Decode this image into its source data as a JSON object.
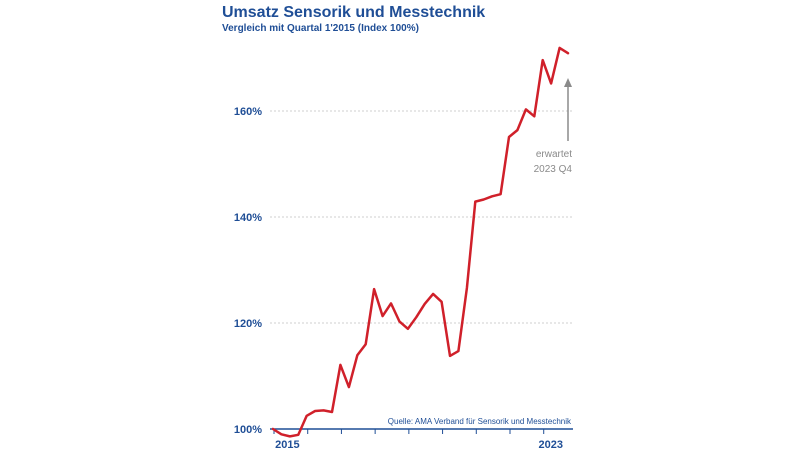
{
  "chart_data": {
    "type": "line",
    "title": "Umsatz Sensorik und Messtechnik",
    "subtitle": "Vergleich mit Quartal 1'2015 (Index 100%)",
    "source": "Quelle: AMA Verband für Sensorik und Messtechnik",
    "ylim": [
      100,
      173
    ],
    "yticks": [
      100,
      120,
      140,
      160
    ],
    "ytick_labels": [
      "100%",
      "120%",
      "140%",
      "160%"
    ],
    "xtick_labels": [
      "2015",
      "2023"
    ],
    "x": [
      "2015 Q1",
      "2015 Q2",
      "2015 Q3",
      "2015 Q4",
      "2016 Q1",
      "2016 Q2",
      "2016 Q3",
      "2016 Q4",
      "2017 Q1",
      "2017 Q2",
      "2017 Q3",
      "2017 Q4",
      "2018 Q1",
      "2018 Q2",
      "2018 Q3",
      "2018 Q4",
      "2019 Q1",
      "2019 Q2",
      "2019 Q3",
      "2019 Q4",
      "2020 Q1",
      "2020 Q2",
      "2020 Q3",
      "2020 Q4",
      "2021 Q1",
      "2021 Q2",
      "2021 Q3",
      "2021 Q4",
      "2022 Q1",
      "2022 Q2",
      "2022 Q3",
      "2022 Q4",
      "2023 Q1",
      "2023 Q2",
      "2023 Q3",
      "2023 Q4"
    ],
    "series": [
      {
        "color": "#d0202a",
        "values": [
          100.0,
          99.0,
          98.6,
          98.9,
          102.5,
          103.4,
          103.5,
          103.2,
          112.1,
          107.9,
          113.9,
          116.0,
          126.4,
          121.3,
          123.7,
          120.3,
          118.9,
          121.1,
          123.6,
          125.5,
          124.0,
          113.8,
          114.7,
          126.6,
          142.9,
          143.3,
          143.9,
          144.3,
          155.1,
          156.4,
          160.3,
          159.0,
          169.6,
          165.2,
          171.9,
          170.9
        ]
      }
    ],
    "annotation": {
      "lines": [
        "erwartet",
        "2023 Q4"
      ],
      "color": "#8a8a8a"
    },
    "grid": true,
    "legend": "none"
  }
}
